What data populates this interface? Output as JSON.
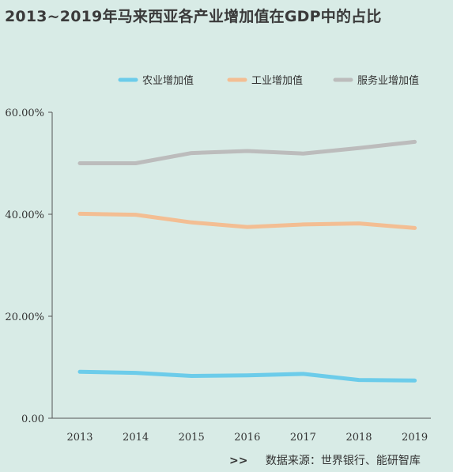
{
  "title": "2013~2019年马来西亚各产业增加值在GDP中的占比",
  "source": {
    "prefix": ">>",
    "text": "数据来源：世界银行、能研智库"
  },
  "chart_data": {
    "type": "line",
    "title": "2013~2019年马来西亚各产业增加值在GDP中的占比",
    "x": [
      "2013",
      "2014",
      "2015",
      "2016",
      "2017",
      "2018",
      "2019"
    ],
    "y_ticks": [
      "0.00",
      "20.00%",
      "40.00%",
      "60.00%"
    ],
    "ylim": [
      0,
      60
    ],
    "grid": false,
    "legend_position": "top",
    "series": [
      {
        "name": "农业增加值",
        "color": "#6cccea",
        "values": [
          9.1,
          8.9,
          8.3,
          8.4,
          8.7,
          7.5,
          7.4
        ]
      },
      {
        "name": "工业增加值",
        "color": "#f3be93",
        "values": [
          40.1,
          39.9,
          38.4,
          37.5,
          38.0,
          38.2,
          37.3
        ]
      },
      {
        "name": "服务业增加值",
        "color": "#bcbcbc",
        "values": [
          50.0,
          50.0,
          52.0,
          52.4,
          51.9,
          53.0,
          54.2
        ]
      }
    ]
  }
}
